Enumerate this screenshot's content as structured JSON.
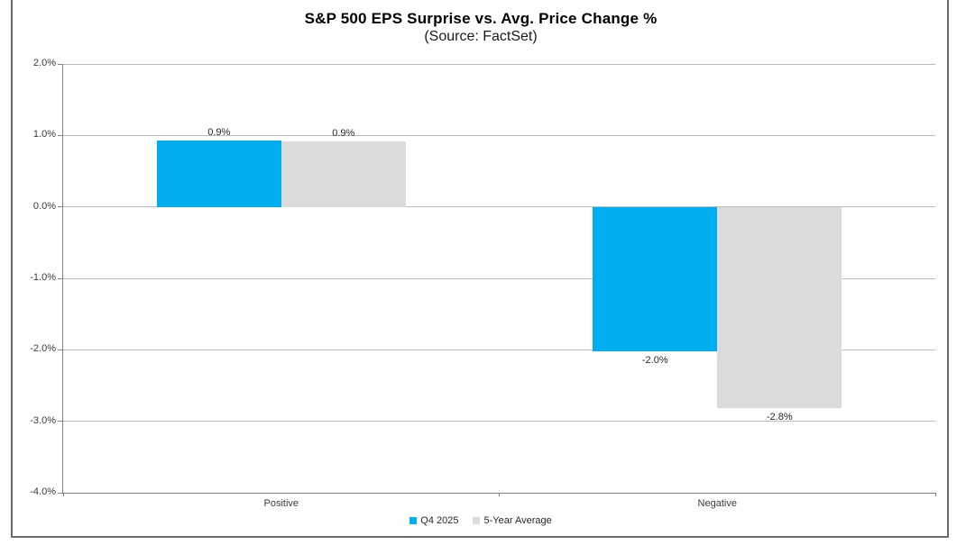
{
  "title": "S&P 500 EPS Surprise vs. Avg. Price Change %",
  "subtitle": "(Source: FactSet)",
  "colors": {
    "q4_blue": "#00AEEF",
    "avg_gray": "#DBDBDB",
    "gridline": "#BDBDBD",
    "axis": "#808080",
    "frame": "#6B6B6B"
  },
  "chart_data": {
    "type": "bar",
    "categories": [
      "Positive",
      "Negative"
    ],
    "series": [
      {
        "name": "Q4 2025",
        "color_key": "q4_blue",
        "values": [
          0.9,
          -2.0
        ],
        "labels": [
          "0.9%",
          "-2.0%"
        ],
        "values_precise": [
          0.93,
          -2.02
        ]
      },
      {
        "name": "5-Year Average",
        "color_key": "avg_gray",
        "values": [
          0.9,
          -2.8
        ],
        "labels": [
          "0.9%",
          "-2.8%"
        ],
        "values_precise": [
          0.91,
          -2.81
        ]
      }
    ],
    "title": "S&P 500 EPS Surprise vs. Avg. Price Change %",
    "subtitle": "(Source: FactSet)",
    "xlabel": "",
    "ylabel": "",
    "ylim": [
      -4,
      2
    ],
    "y_ticks": [
      {
        "value": 2,
        "label": "2.0%"
      },
      {
        "value": 1,
        "label": "1.0%"
      },
      {
        "value": 0,
        "label": "0.0%"
      },
      {
        "value": -1,
        "label": "-1.0%"
      },
      {
        "value": -2,
        "label": "-2.0%"
      },
      {
        "value": -3,
        "label": "-3.0%"
      },
      {
        "value": -4,
        "label": "-4.0%"
      }
    ],
    "grid": true,
    "legend_position": "bottom"
  }
}
